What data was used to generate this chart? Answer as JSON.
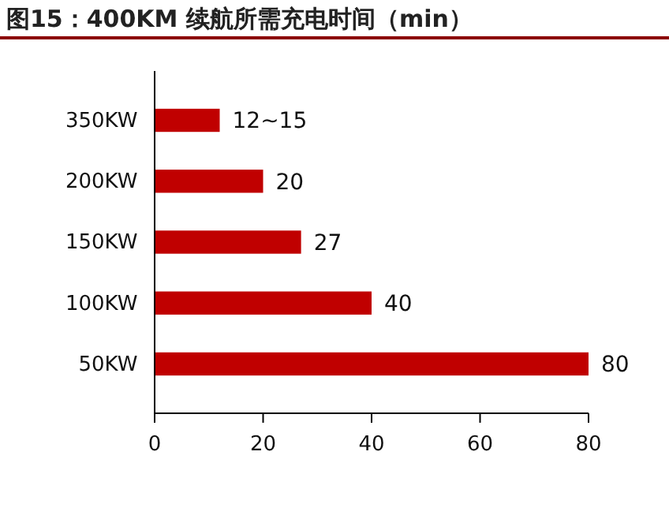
{
  "chart_data": {
    "type": "bar",
    "orientation": "horizontal",
    "title": "图15：400KM 续航所需充电时间（min）",
    "categories": [
      "350KW",
      "200KW",
      "150KW",
      "100KW",
      "50KW"
    ],
    "values": [
      12,
      20,
      27,
      40,
      80
    ],
    "value_labels": [
      "12~15",
      "20",
      "27",
      "40",
      "80"
    ],
    "color": "#c00000",
    "xlim": [
      0,
      80
    ],
    "xticks": [
      0,
      20,
      40,
      60,
      80
    ],
    "grid": false
  }
}
